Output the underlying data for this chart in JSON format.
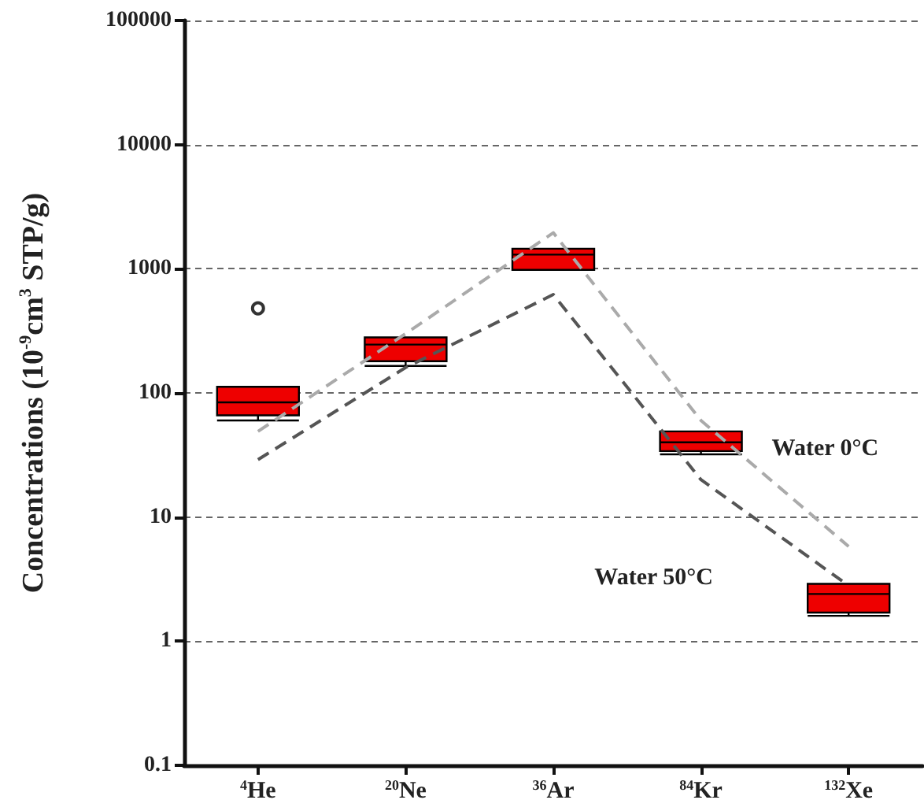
{
  "chart_data": {
    "type": "box",
    "ylabel": "Concentrations (10$^{-9}$cm$^{3}$ STP/g)",
    "categories": [
      "$^{4}$He",
      "$^{20}$Ne",
      "$^{36}$Ar",
      "$^{84}$Kr",
      "$^{132}$Xe"
    ],
    "log": "y",
    "ylim": [
      0.1,
      100000
    ],
    "yticks": [
      0.1,
      1,
      10,
      100,
      1000,
      10000,
      100000
    ],
    "grid": "y",
    "series": [
      {
        "color": "#ee0000",
        "boxes": [
          {
            "low": 60,
            "q1": 66,
            "median": 84,
            "q3": 112,
            "high": 112,
            "outliers": [
              480
            ]
          },
          {
            "low": 165,
            "q1": 180,
            "median": 245,
            "q3": 280,
            "high": 280
          },
          {
            "low": 980,
            "q1": 980,
            "median": 1300,
            "q3": 1450,
            "high": 1450
          },
          {
            "low": 32,
            "q1": 34,
            "median": 40,
            "q3": 49,
            "high": 49
          },
          {
            "low": 1.6,
            "q1": 1.7,
            "median": 2.4,
            "q3": 2.9,
            "high": 2.9
          }
        ]
      },
      {
        "type": "line",
        "name": "Water 0°C",
        "color": "#aaaaaa",
        "line_style": "dashed",
        "marker": "none",
        "values": [
          49,
          300,
          1950,
          60,
          5.8
        ]
      },
      {
        "type": "line",
        "name": "Water 50°C",
        "color": "#555555",
        "line_style": "dashed",
        "marker": "none",
        "values": [
          29,
          160,
          620,
          20,
          2.8
        ]
      }
    ]
  }
}
